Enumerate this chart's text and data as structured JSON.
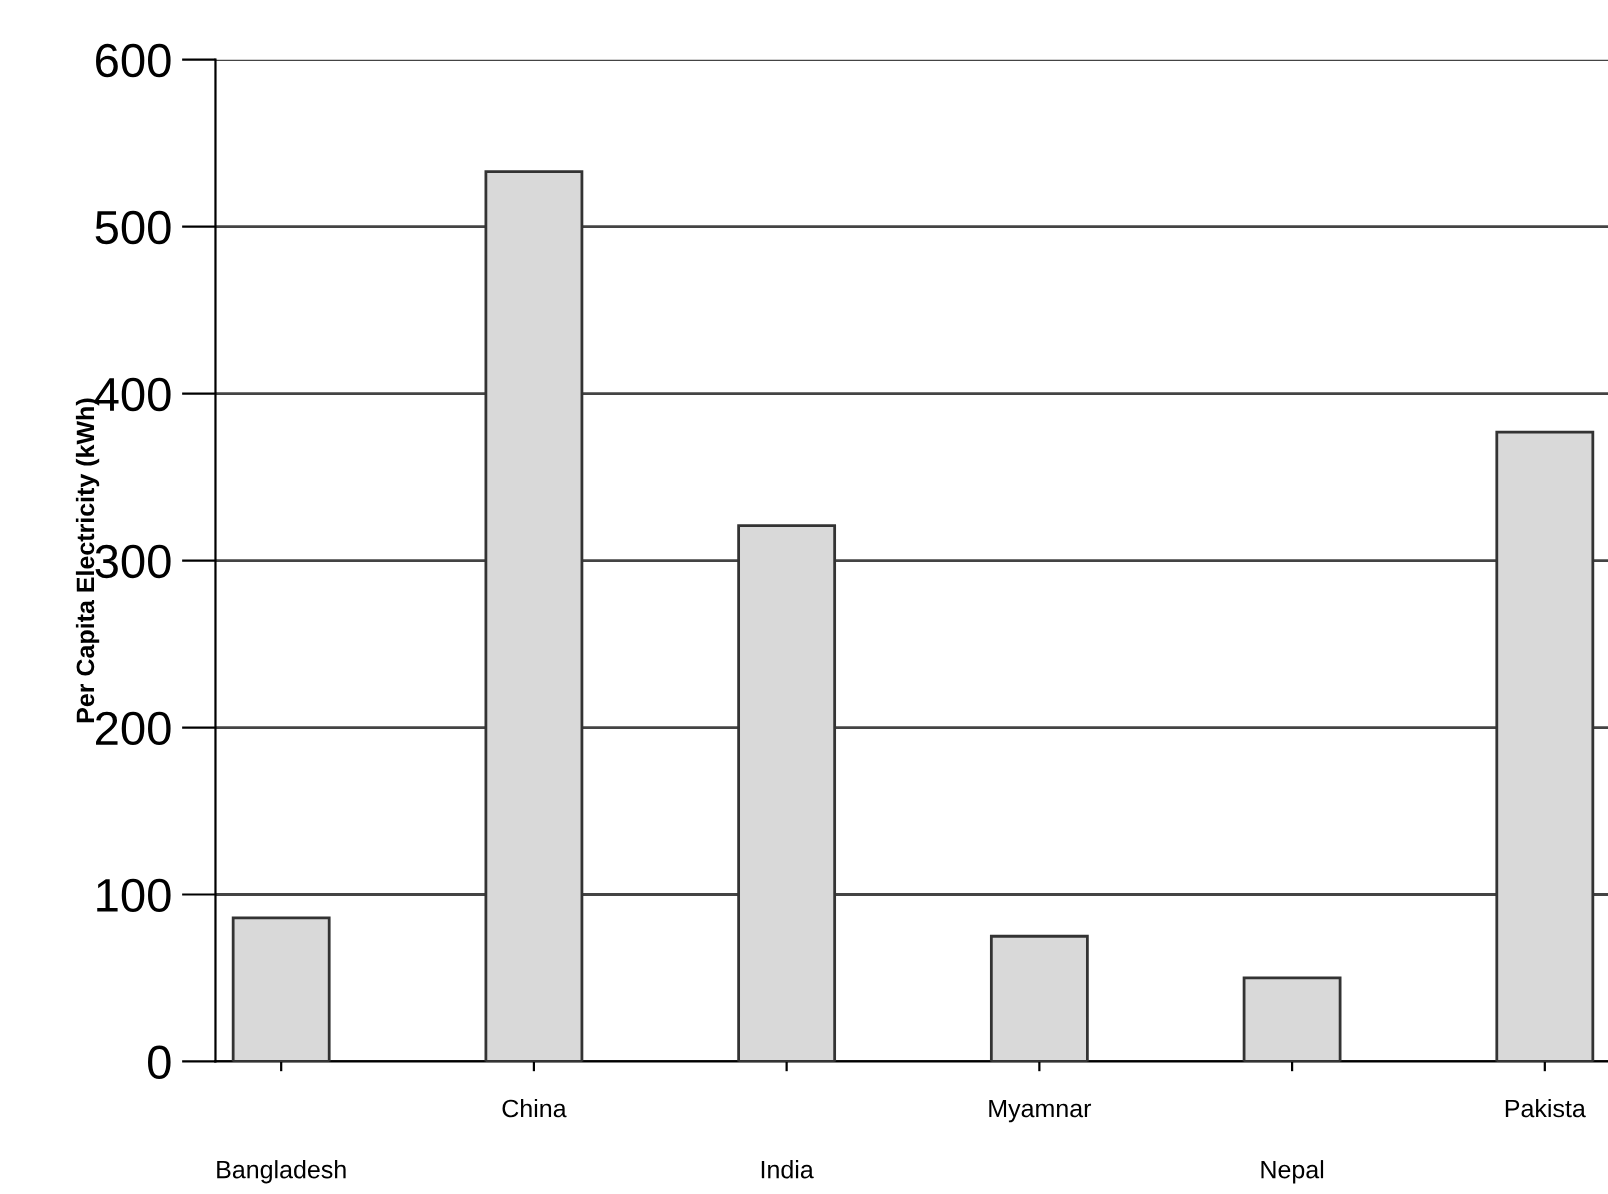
{
  "chart_data": {
    "type": "bar",
    "ylabel": "Per Capita Electricity (kWh)",
    "categories": [
      "Bangladesh",
      "China",
      "India",
      "Myamnar",
      "Nepal",
      "Pakista"
    ],
    "values": [
      86,
      533,
      321,
      75,
      50,
      377
    ],
    "color": "#d9d9d9",
    "ylim": [
      0,
      600
    ],
    "yticks": [
      0,
      100,
      200,
      300,
      400,
      500,
      600
    ],
    "grid": "y",
    "legend": false
  }
}
